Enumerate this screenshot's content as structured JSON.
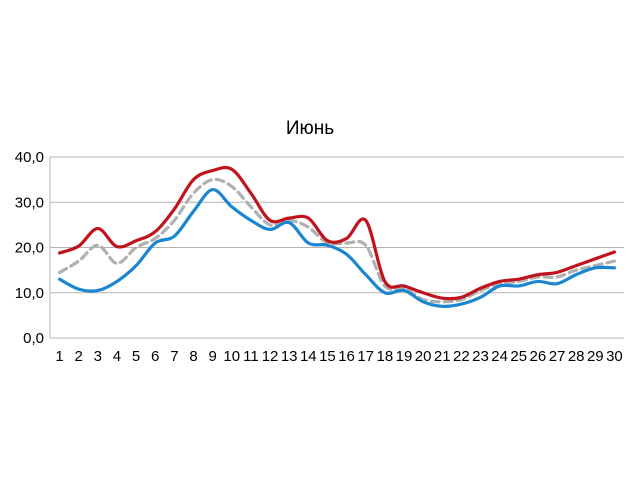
{
  "chart_data": {
    "type": "line",
    "title": "Июнь",
    "xlabel": "",
    "ylabel": "",
    "ylim": [
      0,
      40
    ],
    "y_ticks": [
      "0,0",
      "10,0",
      "20,0",
      "30,0",
      "40,0"
    ],
    "y_tick_values": [
      0,
      10,
      20,
      30,
      40
    ],
    "grid": true,
    "legend": "none",
    "categories": [
      "1",
      "2",
      "3",
      "4",
      "5",
      "6",
      "7",
      "8",
      "9",
      "10",
      "11",
      "12",
      "13",
      "14",
      "15",
      "16",
      "17",
      "18",
      "19",
      "20",
      "21",
      "22",
      "23",
      "24",
      "25",
      "26",
      "27",
      "28",
      "29",
      "30"
    ],
    "series": [
      {
        "color": "#c0141c",
        "dashed": false,
        "values": [
          18.8,
          20.3,
          24.2,
          20.2,
          21.5,
          23.5,
          28.5,
          35.0,
          37.0,
          37.3,
          32.0,
          26.0,
          26.5,
          26.5,
          21.5,
          22.0,
          26.0,
          12.5,
          11.5,
          10.0,
          8.8,
          9.0,
          11.0,
          12.5,
          13.0,
          14.0,
          14.5,
          16.0,
          17.5,
          19.0
        ]
      },
      {
        "color": "#b0b0b0",
        "dashed": true,
        "values": [
          14.5,
          17.0,
          20.5,
          16.5,
          20.0,
          22.0,
          26.0,
          32.0,
          35.0,
          33.5,
          29.0,
          25.0,
          26.0,
          24.5,
          21.0,
          21.0,
          20.5,
          11.5,
          11.0,
          8.5,
          8.0,
          8.5,
          10.5,
          12.0,
          12.5,
          13.5,
          13.5,
          15.0,
          16.0,
          17.0
        ]
      },
      {
        "color": "#1a86d0",
        "dashed": false,
        "values": [
          13.0,
          10.8,
          10.5,
          12.5,
          16.0,
          21.0,
          22.5,
          28.0,
          32.8,
          29.0,
          26.0,
          24.0,
          25.5,
          21.0,
          20.5,
          18.5,
          14.0,
          10.0,
          10.5,
          8.0,
          7.0,
          7.5,
          9.0,
          11.5,
          11.5,
          12.5,
          12.0,
          14.0,
          15.5,
          15.5
        ]
      }
    ]
  }
}
